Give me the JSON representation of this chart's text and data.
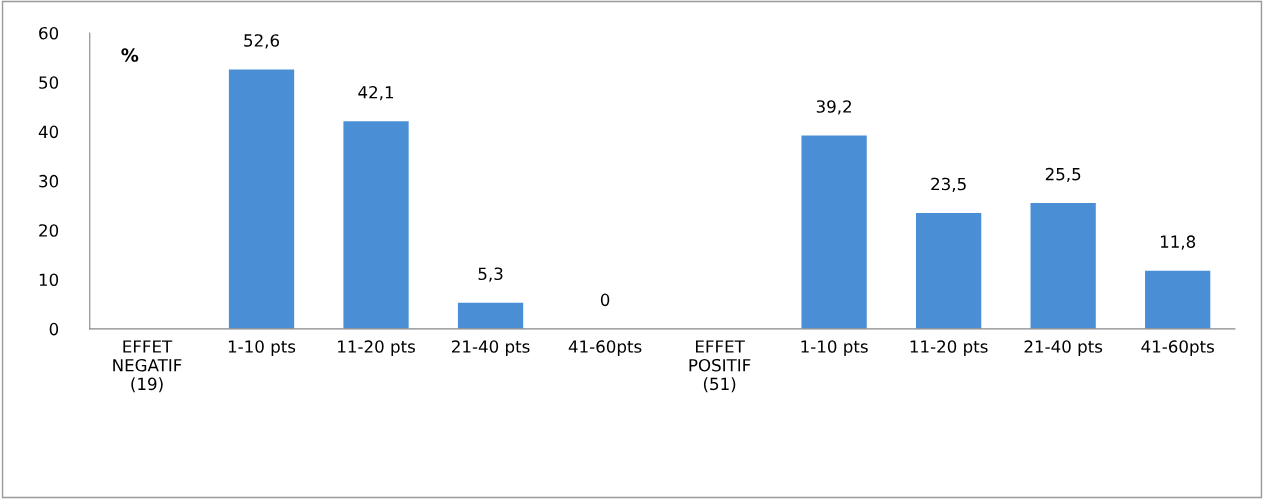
{
  "chart_data": {
    "type": "bar",
    "ylabel": "%",
    "categories": [
      "EFFET\nNEGATIF\n(19)",
      "1-10 pts",
      "11-20 pts",
      "21-40 pts",
      "41-60pts",
      "EFFET\nPOSITIF\n(51)",
      "1-10 pts",
      "11-20 pts",
      "21-40 pts",
      "41-60pts"
    ],
    "values": [
      null,
      52.6,
      42.1,
      5.3,
      0,
      null,
      39.2,
      23.5,
      25.5,
      11.8
    ],
    "value_labels": [
      null,
      "52,6",
      "42,1",
      "5,3",
      "0",
      null,
      "39,2",
      "23,5",
      "25,5",
      "11,8"
    ],
    "color": "#4a8fd6",
    "ylim": [
      0,
      60
    ],
    "yticks": [
      0,
      10,
      20,
      30,
      40,
      50,
      60
    ],
    "grid": false,
    "legend": false
  }
}
